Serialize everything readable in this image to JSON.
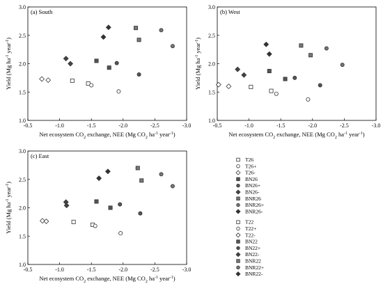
{
  "legend": {
    "group_26": [
      {
        "name": "T26",
        "marker": "square-open"
      },
      {
        "name": "T26+",
        "marker": "circle-open"
      },
      {
        "name": "T26-",
        "marker": "diamond-open"
      },
      {
        "name": "BN26",
        "marker": "square-filled"
      },
      {
        "name": "BN26+",
        "marker": "circle-filled"
      },
      {
        "name": "BN26-",
        "marker": "diamond-filled"
      },
      {
        "name": "BNR26",
        "marker": "square-filled"
      },
      {
        "name": "BNR26+",
        "marker": "circle-filled"
      },
      {
        "name": "BNR26-",
        "marker": "diamond-filled"
      }
    ],
    "group_22": [
      {
        "name": "T22",
        "marker": "square-open"
      },
      {
        "name": "T22+",
        "marker": "circle-open"
      },
      {
        "name": "T22-",
        "marker": "diamond-open"
      },
      {
        "name": "BN22",
        "marker": "square-filled"
      },
      {
        "name": "BN22+",
        "marker": "circle-filled"
      },
      {
        "name": "BN22-",
        "marker": "diamond-filled"
      },
      {
        "name": "BNR22",
        "marker": "square-filled"
      },
      {
        "name": "BNR22+",
        "marker": "circle-filled"
      },
      {
        "name": "BNR22-",
        "marker": "diamond-filled"
      }
    ]
  },
  "colors": {
    "axis": "#000000",
    "BN": "#555555",
    "BNR": "#777777"
  },
  "chart_data": [
    {
      "type": "scatter",
      "panel": "(a) South",
      "xlabel": "Net ecosystem CO₂ exchange, NEE (Mg CO₂ ha⁻¹ year⁻¹)",
      "ylabel": "Yield (Mg ha⁻¹ year⁻¹)",
      "xlim": [
        -0.5,
        -3.0
      ],
      "ylim": [
        1.0,
        3.0
      ],
      "xticks": [
        "-0.5",
        "-1.0",
        "-1.5",
        "-2.0",
        "-2.5",
        "-3.0"
      ],
      "yticks": [
        "1.0",
        "1.5",
        "2.0",
        "2.5",
        "3.0"
      ],
      "grid": false,
      "series": [
        {
          "name": "T26",
          "marker": "square-open",
          "x": -1.2,
          "y": 1.7
        },
        {
          "name": "T26",
          "marker": "square-open",
          "x": -1.45,
          "y": 1.65
        },
        {
          "name": "T26+",
          "marker": "circle-open",
          "x": -1.5,
          "y": 1.62
        },
        {
          "name": "T26+",
          "marker": "circle-open",
          "x": -1.93,
          "y": 1.51
        },
        {
          "name": "T26-",
          "marker": "diamond-open",
          "x": -0.72,
          "y": 1.73
        },
        {
          "name": "T26-",
          "marker": "diamond-open",
          "x": -0.82,
          "y": 1.71
        },
        {
          "name": "BN26",
          "marker": "square-filled",
          "x": -1.58,
          "y": 2.05
        },
        {
          "name": "BN26",
          "marker": "square-filled",
          "x": -1.78,
          "y": 1.93
        },
        {
          "name": "BN26+",
          "marker": "circle-filled",
          "x": -1.9,
          "y": 2.01
        },
        {
          "name": "BN26+",
          "marker": "circle-filled",
          "x": -2.25,
          "y": 1.81
        },
        {
          "name": "BN26-",
          "marker": "diamond-filled",
          "x": -1.1,
          "y": 2.09
        },
        {
          "name": "BN26-",
          "marker": "diamond-filled",
          "x": -1.17,
          "y": 2.0
        },
        {
          "name": "BNR26",
          "marker": "square-filled",
          "x": -2.2,
          "y": 2.63
        },
        {
          "name": "BNR26",
          "marker": "square-filled",
          "x": -2.25,
          "y": 2.42
        },
        {
          "name": "BNR26+",
          "marker": "circle-filled",
          "x": -2.6,
          "y": 2.59
        },
        {
          "name": "BNR26+",
          "marker": "circle-filled",
          "x": -2.78,
          "y": 2.31
        },
        {
          "name": "BNR26-",
          "marker": "diamond-filled",
          "x": -1.77,
          "y": 2.64
        },
        {
          "name": "BNR26-",
          "marker": "diamond-filled",
          "x": -1.69,
          "y": 2.47
        }
      ]
    },
    {
      "type": "scatter",
      "panel": "(b) West",
      "xlabel": "Net ecosystem CO₂ exchange, NEE (Mg CO₂ ha⁻¹ year⁻¹)",
      "ylabel": "Yield (Mg ha⁻¹ year⁻¹)",
      "xlim": [
        -0.5,
        -3.0
      ],
      "ylim": [
        1.0,
        3.0
      ],
      "xticks": [
        "-0.5",
        "-1.0",
        "-1.5",
        "-2.0",
        "-2.5",
        "-3.0"
      ],
      "yticks": [
        "1.0",
        "1.5",
        "2.0",
        "2.5",
        "3.0"
      ],
      "grid": false,
      "series": [
        {
          "name": "T26",
          "marker": "square-open",
          "x": -1.03,
          "y": 1.59
        },
        {
          "name": "T26",
          "marker": "square-open",
          "x": -1.35,
          "y": 1.52
        },
        {
          "name": "T26+",
          "marker": "circle-open",
          "x": -1.43,
          "y": 1.47
        },
        {
          "name": "T26+",
          "marker": "circle-open",
          "x": -1.93,
          "y": 1.37
        },
        {
          "name": "T26-",
          "marker": "diamond-open",
          "x": -0.52,
          "y": 1.63
        },
        {
          "name": "T26-",
          "marker": "diamond-open",
          "x": -0.68,
          "y": 1.6
        },
        {
          "name": "BN26",
          "marker": "square-filled",
          "x": -1.32,
          "y": 1.87
        },
        {
          "name": "BN26",
          "marker": "square-filled",
          "x": -1.57,
          "y": 1.73
        },
        {
          "name": "BN26+",
          "marker": "circle-filled",
          "x": -1.72,
          "y": 1.75
        },
        {
          "name": "BN26+",
          "marker": "circle-filled",
          "x": -2.12,
          "y": 1.62
        },
        {
          "name": "BN26-",
          "marker": "diamond-filled",
          "x": -0.82,
          "y": 1.9
        },
        {
          "name": "BN26-",
          "marker": "diamond-filled",
          "x": -0.92,
          "y": 1.8
        },
        {
          "name": "BNR26",
          "marker": "square-filled",
          "x": -1.82,
          "y": 2.32
        },
        {
          "name": "BNR26",
          "marker": "square-filled",
          "x": -1.97,
          "y": 2.15
        },
        {
          "name": "BNR26+",
          "marker": "circle-filled",
          "x": -2.22,
          "y": 2.27
        },
        {
          "name": "BNR26+",
          "marker": "circle-filled",
          "x": -2.47,
          "y": 1.98
        },
        {
          "name": "BNR26-",
          "marker": "diamond-filled",
          "x": -1.27,
          "y": 2.34
        },
        {
          "name": "BNR26-",
          "marker": "diamond-filled",
          "x": -1.32,
          "y": 2.17
        }
      ]
    },
    {
      "type": "scatter",
      "panel": "(c) East",
      "xlabel": "Net ecosystem CO₂ exchange, NEE (Mg CO₂ ha⁻¹ year⁻¹)",
      "ylabel": "Yield (Mg ha⁻¹ year⁻¹)",
      "xlim": [
        -0.5,
        -3.0
      ],
      "ylim": [
        1.0,
        3.0
      ],
      "xticks": [
        "-0.5",
        "-1.0",
        "-1.5",
        "-2.0",
        "-2.5",
        "-3.0"
      ],
      "yticks": [
        "1.0",
        "1.5",
        "2.0",
        "2.5",
        "3.0"
      ],
      "grid": false,
      "series": [
        {
          "name": "T22",
          "marker": "square-open",
          "x": -1.22,
          "y": 1.75
        },
        {
          "name": "T22",
          "marker": "square-open",
          "x": -1.52,
          "y": 1.7
        },
        {
          "name": "T22+",
          "marker": "circle-open",
          "x": -1.56,
          "y": 1.68
        },
        {
          "name": "T22+",
          "marker": "circle-open",
          "x": -1.96,
          "y": 1.55
        },
        {
          "name": "T22-",
          "marker": "diamond-open",
          "x": -0.73,
          "y": 1.77
        },
        {
          "name": "T22-",
          "marker": "diamond-open",
          "x": -0.79,
          "y": 1.76
        },
        {
          "name": "BN22",
          "marker": "square-filled",
          "x": -1.58,
          "y": 2.11
        },
        {
          "name": "BN22",
          "marker": "square-filled",
          "x": -1.8,
          "y": 2.0
        },
        {
          "name": "BN22+",
          "marker": "circle-filled",
          "x": -1.95,
          "y": 2.06
        },
        {
          "name": "BN22+",
          "marker": "circle-filled",
          "x": -2.27,
          "y": 1.9
        },
        {
          "name": "BN22-",
          "marker": "diamond-filled",
          "x": -1.1,
          "y": 2.1
        },
        {
          "name": "BN22-",
          "marker": "diamond-filled",
          "x": -1.11,
          "y": 2.04
        },
        {
          "name": "BNR22",
          "marker": "square-filled",
          "x": -2.23,
          "y": 2.7
        },
        {
          "name": "BNR22",
          "marker": "square-filled",
          "x": -2.29,
          "y": 2.48
        },
        {
          "name": "BNR22+",
          "marker": "circle-filled",
          "x": -2.6,
          "y": 2.59
        },
        {
          "name": "BNR22+",
          "marker": "circle-filled",
          "x": -2.78,
          "y": 2.38
        },
        {
          "name": "BNR22-",
          "marker": "diamond-filled",
          "x": -1.76,
          "y": 2.64
        },
        {
          "name": "BNR22-",
          "marker": "diamond-filled",
          "x": -1.62,
          "y": 2.52
        }
      ]
    }
  ]
}
